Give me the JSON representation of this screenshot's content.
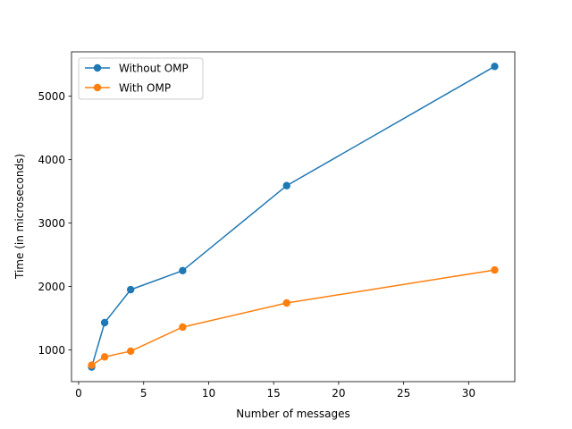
{
  "chart_data": {
    "type": "line",
    "title": "",
    "xlabel": "Number of messages",
    "ylabel": "Time (in microseconds)",
    "xlim": [
      -0.55,
      33.55
    ],
    "ylim": [
      500,
      5700
    ],
    "xticks": [
      0,
      5,
      10,
      15,
      20,
      25,
      30
    ],
    "yticks": [
      1000,
      2000,
      3000,
      4000,
      5000
    ],
    "grid": false,
    "legend_position": "top-left",
    "series": [
      {
        "name": "Without OMP",
        "color": "#1f77b4",
        "x": [
          1,
          2,
          4,
          8,
          16,
          32
        ],
        "y": [
          730,
          1430,
          1950,
          2250,
          3590,
          5470
        ]
      },
      {
        "name": "With OMP",
        "color": "#ff7f0e",
        "x": [
          1,
          2,
          4,
          8,
          16,
          32
        ],
        "y": [
          760,
          890,
          980,
          1360,
          1740,
          2260
        ]
      }
    ]
  }
}
